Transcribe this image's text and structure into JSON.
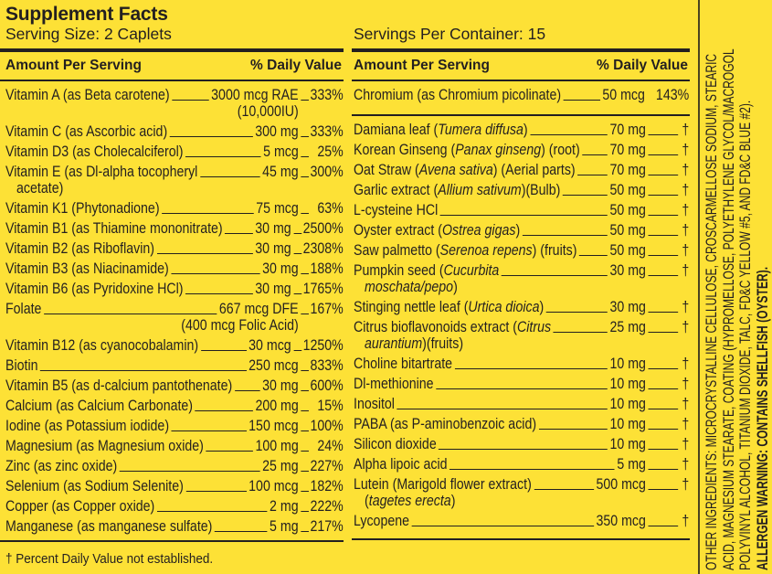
{
  "header": {
    "title": "Supplement Facts",
    "serving_size": "Serving Size: 2 Caplets",
    "servings_per_container": "Servings Per Container: 15",
    "amount_per_serving": "Amount Per Serving",
    "daily_value": "% Daily Value"
  },
  "left_rows": [
    {
      "name": "Vitamin A (as Beta carotene)",
      "amount": "3000 mcg RAE",
      "dv": "333%",
      "sub": "(10,000IU)",
      "sub_type": "amount"
    },
    {
      "name": "Vitamin C (as Ascorbic acid)",
      "amount": "300 mg",
      "dv": "333%"
    },
    {
      "name": "Vitamin D3 (as Cholecalciferol)",
      "amount": "5 mcg",
      "dv": "25%"
    },
    {
      "name": "Vitamin E (as Dl-alpha tocopheryl",
      "amount": "45 mg",
      "dv": "300%",
      "sub": "acetate)",
      "sub_type": "name"
    },
    {
      "name": "Vitamin K1 (Phytonadione)",
      "amount": "75 mcg",
      "dv": "63%"
    },
    {
      "name": "Vitamin B1 (as Thiamine mononitrate)",
      "amount": "30 mg",
      "dv": "2500%"
    },
    {
      "name": "Vitamin B2 (as Riboflavin)",
      "amount": "30 mg",
      "dv": "2308%"
    },
    {
      "name": "Vitamin B3 (as Niacinamide)",
      "amount": "30 mg",
      "dv": "188%"
    },
    {
      "name": "Vitamin B6 (as Pyridoxine HCl)",
      "amount": "30 mg",
      "dv": "1765%"
    },
    {
      "name": "Folate",
      "amount": "667 mcg DFE",
      "dv": "167%",
      "sub": "(400 mcg Folic Acid)",
      "sub_type": "amount"
    },
    {
      "name": "Vitamin B12 (as cyanocobalamin)",
      "amount": "30 mcg",
      "dv": "1250%"
    },
    {
      "name": "Biotin",
      "amount": "250 mcg",
      "dv": "833%"
    },
    {
      "name": "Vitamin B5 (as d-calcium pantothenate)",
      "amount": "30 mg",
      "dv": "600%"
    },
    {
      "name": "Calcium (as Calcium Carbonate)",
      "amount": "200 mg",
      "dv": "15%"
    },
    {
      "name": "Iodine (as Potassium iodide)",
      "amount": "150 mcg",
      "dv": "100%"
    },
    {
      "name": "Magnesium (as Magnesium oxide)",
      "amount": "100 mg",
      "dv": "24%"
    },
    {
      "name": "Zinc (as zinc oxide)",
      "amount": "25 mg",
      "dv": "227%"
    },
    {
      "name": "Selenium (as Sodium Selenite)",
      "amount": "100 mcg",
      "dv": "182%"
    },
    {
      "name": "Copper (as Copper oxide)",
      "amount": "2 mg",
      "dv": "222%"
    },
    {
      "name": "Manganese (as manganese sulfate)",
      "amount": "5 mg",
      "dv": "217%"
    }
  ],
  "chromium_row": {
    "name": "Chromium (as Chromium picolinate)",
    "amount": "50 mcg",
    "dv": "143%"
  },
  "right_rows": [
    {
      "name": "Damiana leaf (",
      "italic": "Tumera diffusa",
      "post": ")",
      "amount": "70 mg",
      "dv": "†"
    },
    {
      "name": "Korean Ginseng (",
      "italic": "Panax ginseng",
      "post": ") (root)",
      "amount": "70 mg",
      "dv": "†"
    },
    {
      "name": "Oat Straw (",
      "italic": "Avena sativa",
      "post": ") (Aerial parts)",
      "amount": "70 mg",
      "dv": "†"
    },
    {
      "name": "Garlic extract (",
      "italic": "Allium sativum",
      "post": ")(Bulb)",
      "amount": "50 mg",
      "dv": "†"
    },
    {
      "name": "L-cysteine HCl",
      "amount": "50 mg",
      "dv": "†"
    },
    {
      "name": "Oyster extract (",
      "italic": "Ostrea gigas",
      "post": ")",
      "amount": "50 mg",
      "dv": "†"
    },
    {
      "name": "Saw palmetto (",
      "italic": "Serenoa repens",
      "post": ") (fruits)",
      "amount": "50 mg",
      "dv": "†"
    },
    {
      "name": "Pumpkin seed (",
      "italic": "Cucurbita",
      "amount": "30 mg",
      "dv": "†",
      "sub_italic": "moschata/pepo",
      "sub_post": ")"
    },
    {
      "name": "Stinging nettle leaf (",
      "italic": "Urtica dioica",
      "post": ")",
      "amount": "30 mg",
      "dv": "†"
    },
    {
      "name": "Citrus bioflavonoids extract (",
      "italic": "Citrus",
      "amount": "25 mg",
      "dv": "†",
      "sub_italic": "aurantium",
      "sub_post": ")(fruits)"
    },
    {
      "name": "Choline bitartrate",
      "amount": "10 mg",
      "dv": "†"
    },
    {
      "name": "Dl-methionine",
      "amount": "10 mg",
      "dv": "†"
    },
    {
      "name": "Inositol",
      "amount": "10 mg",
      "dv": "†"
    },
    {
      "name": "PABA (as P-aminobenzoic acid)",
      "amount": "10 mg",
      "dv": "†"
    },
    {
      "name": "Silicon dioxide",
      "amount": "10 mg",
      "dv": "†"
    },
    {
      "name": "Alpha lipoic acid",
      "amount": "5 mg",
      "dv": "†"
    },
    {
      "name": "Lutein (Marigold flower extract)",
      "amount": "500 mcg",
      "dv": "†",
      "sub_pre": "(",
      "sub_italic": "tagetes erecta",
      "sub_post": ")"
    },
    {
      "name": "Lycopene",
      "amount": "350 mcg",
      "dv": "†"
    }
  ],
  "footnote": "† Percent Daily Value not established.",
  "side_text": {
    "line1": "OTHER INGREDIENTS: MICROCRYSTALLINE CELLULOSE, CROSCARMELLOSE SODIUM, STEARIC",
    "line2": "ACID, MAGNESIUM STEARATE, COATING (HYPROMELLOSE, POLYETHYLENE GLYCOL/MACROGOL",
    "line3": "POLYVINYL ALCOHOL, TITANIUM DIOXIDE, TALC, FD&C YELLOW #5, AND FD&C BLUE #2).",
    "line4": "ALLERGEN WARNING: CONTAINS SHELLFISH (OYSTER)."
  },
  "colors": {
    "background": "#fde136",
    "text": "#231f20"
  }
}
